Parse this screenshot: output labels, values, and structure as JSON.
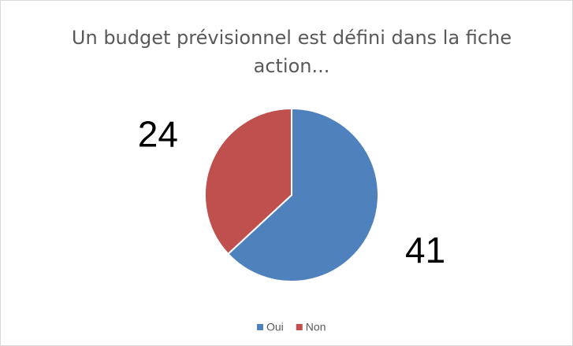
{
  "chart_data": {
    "type": "pie",
    "title": "Un budget prévisionnel est défini dans la fiche action...",
    "categories": [
      "Oui",
      "Non"
    ],
    "values": [
      41,
      24
    ],
    "colors": [
      "#4f81bd",
      "#c0504d"
    ],
    "legend": "bottom"
  }
}
